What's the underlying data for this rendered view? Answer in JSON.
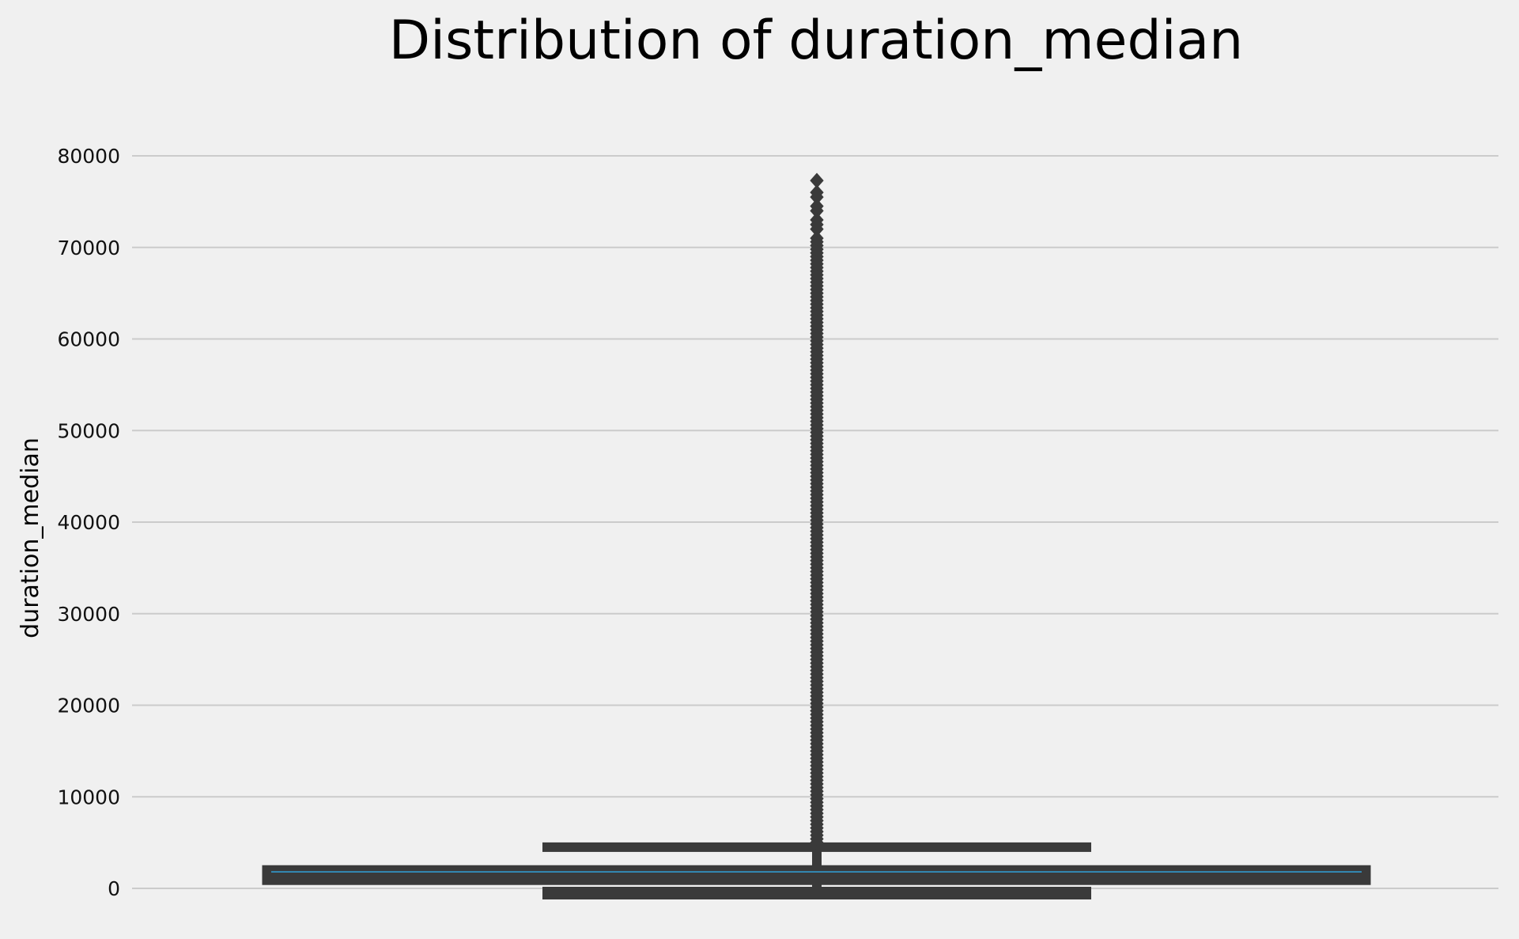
{
  "chart_data": {
    "type": "box",
    "title": "Distribution of duration_median",
    "xlabel": "",
    "ylabel": "duration_median",
    "ylim": [
      -2500,
      82000
    ],
    "yticks": [
      0,
      10000,
      20000,
      30000,
      40000,
      50000,
      60000,
      70000,
      80000
    ],
    "grid": "horizontal",
    "colors": {
      "background": "#f0f0f0",
      "grid": "#cbcbcb",
      "box": "#3a3a3a",
      "median": "#30a2da"
    },
    "box": {
      "min": 0,
      "q1": 500,
      "median": 1800,
      "q3": 2400,
      "max": 4500
    },
    "outliers": {
      "from": 4600,
      "to": 77300,
      "sparse_values": [
        72000,
        72500,
        73000,
        74000,
        74500,
        75500,
        76000,
        77300
      ]
    }
  }
}
